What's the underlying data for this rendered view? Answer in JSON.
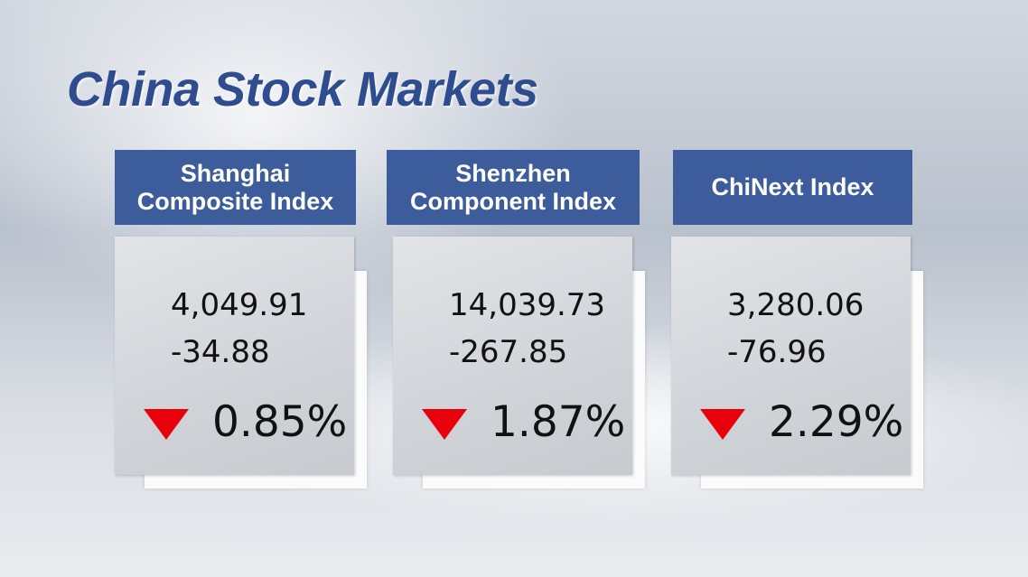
{
  "title": "China Stock Markets",
  "cards": [
    {
      "name": "Shanghai Composite Index",
      "value": "4,049.91",
      "change": "-34.88",
      "percent": "0.85%"
    },
    {
      "name": "Shenzhen Component Index",
      "value": "14,039.73",
      "change": "-267.85",
      "percent": "1.87%"
    },
    {
      "name": "ChiNext Index",
      "value": "3,280.06",
      "change": "-76.96",
      "percent": "2.29%"
    }
  ]
}
